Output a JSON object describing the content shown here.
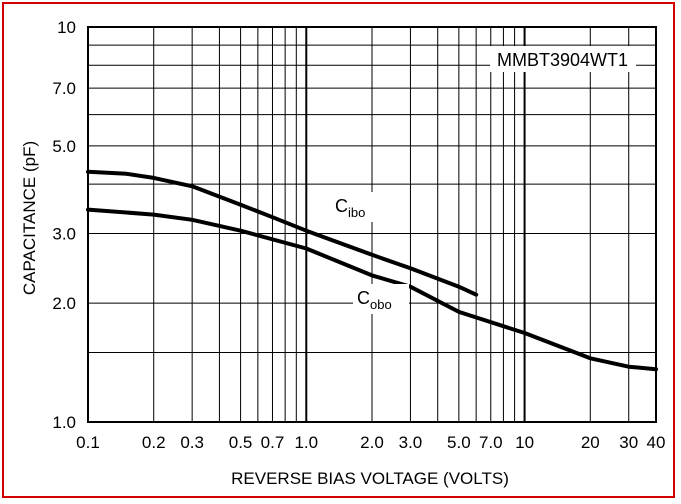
{
  "chart_data": {
    "type": "line",
    "xscale": "log",
    "yscale": "log",
    "xlim": [
      0.1,
      40
    ],
    "ylim": [
      1.0,
      10
    ],
    "xlabel": "REVERSE BIAS VOLTAGE (VOLTS)",
    "ylabel": "CAPACITANCE (pF)",
    "x_tick_labels": [
      {
        "value": 0.1,
        "label": "0.1"
      },
      {
        "value": 0.2,
        "label": "0.2"
      },
      {
        "value": 0.3,
        "label": "0.3"
      },
      {
        "value": 0.5,
        "label": "0.5"
      },
      {
        "value": 0.7,
        "label": "0.7"
      },
      {
        "value": 1.0,
        "label": "1.0"
      },
      {
        "value": 2.0,
        "label": "2.0"
      },
      {
        "value": 3.0,
        "label": "3.0"
      },
      {
        "value": 5.0,
        "label": "5.0"
      },
      {
        "value": 7.0,
        "label": "7.0"
      },
      {
        "value": 10,
        "label": "10"
      },
      {
        "value": 20,
        "label": "20"
      },
      {
        "value": 30,
        "label": "30"
      },
      {
        "value": 40,
        "label": "40"
      }
    ],
    "y_tick_labels": [
      {
        "value": 1.0,
        "label": "1.0"
      },
      {
        "value": 2.0,
        "label": "2.0"
      },
      {
        "value": 3.0,
        "label": "3.0"
      },
      {
        "value": 5.0,
        "label": "5.0"
      },
      {
        "value": 7.0,
        "label": "7.0"
      },
      {
        "value": 10,
        "label": "10"
      }
    ],
    "x_grid": [
      0.1,
      0.2,
      0.3,
      0.4,
      0.5,
      0.6,
      0.7,
      0.8,
      0.9,
      1,
      2,
      3,
      4,
      5,
      6,
      7,
      8,
      9,
      10,
      20,
      30,
      40
    ],
    "y_grid": [
      1,
      1.5,
      2,
      3,
      4,
      5,
      6,
      7,
      8,
      9,
      10
    ],
    "grid": true,
    "annotation": "MMBT3904WT1",
    "series": [
      {
        "name": "Cibo",
        "label_main": "C",
        "label_sub": "ibo",
        "x": [
          0.1,
          0.15,
          0.2,
          0.3,
          0.5,
          0.7,
          1.0,
          2.0,
          3.0,
          5.0,
          6.0
        ],
        "y": [
          4.3,
          4.25,
          4.15,
          3.95,
          3.55,
          3.3,
          3.05,
          2.65,
          2.45,
          2.2,
          2.1
        ]
      },
      {
        "name": "Cobo",
        "label_main": "C",
        "label_sub": "obo",
        "x": [
          0.1,
          0.2,
          0.3,
          0.5,
          1.0,
          2.0,
          3.0,
          5.0,
          10,
          20,
          30,
          40
        ],
        "y": [
          3.45,
          3.35,
          3.25,
          3.05,
          2.75,
          2.35,
          2.2,
          1.9,
          1.68,
          1.45,
          1.38,
          1.36
        ]
      }
    ],
    "line_color": "#000000",
    "frame_color": "#d40000"
  }
}
